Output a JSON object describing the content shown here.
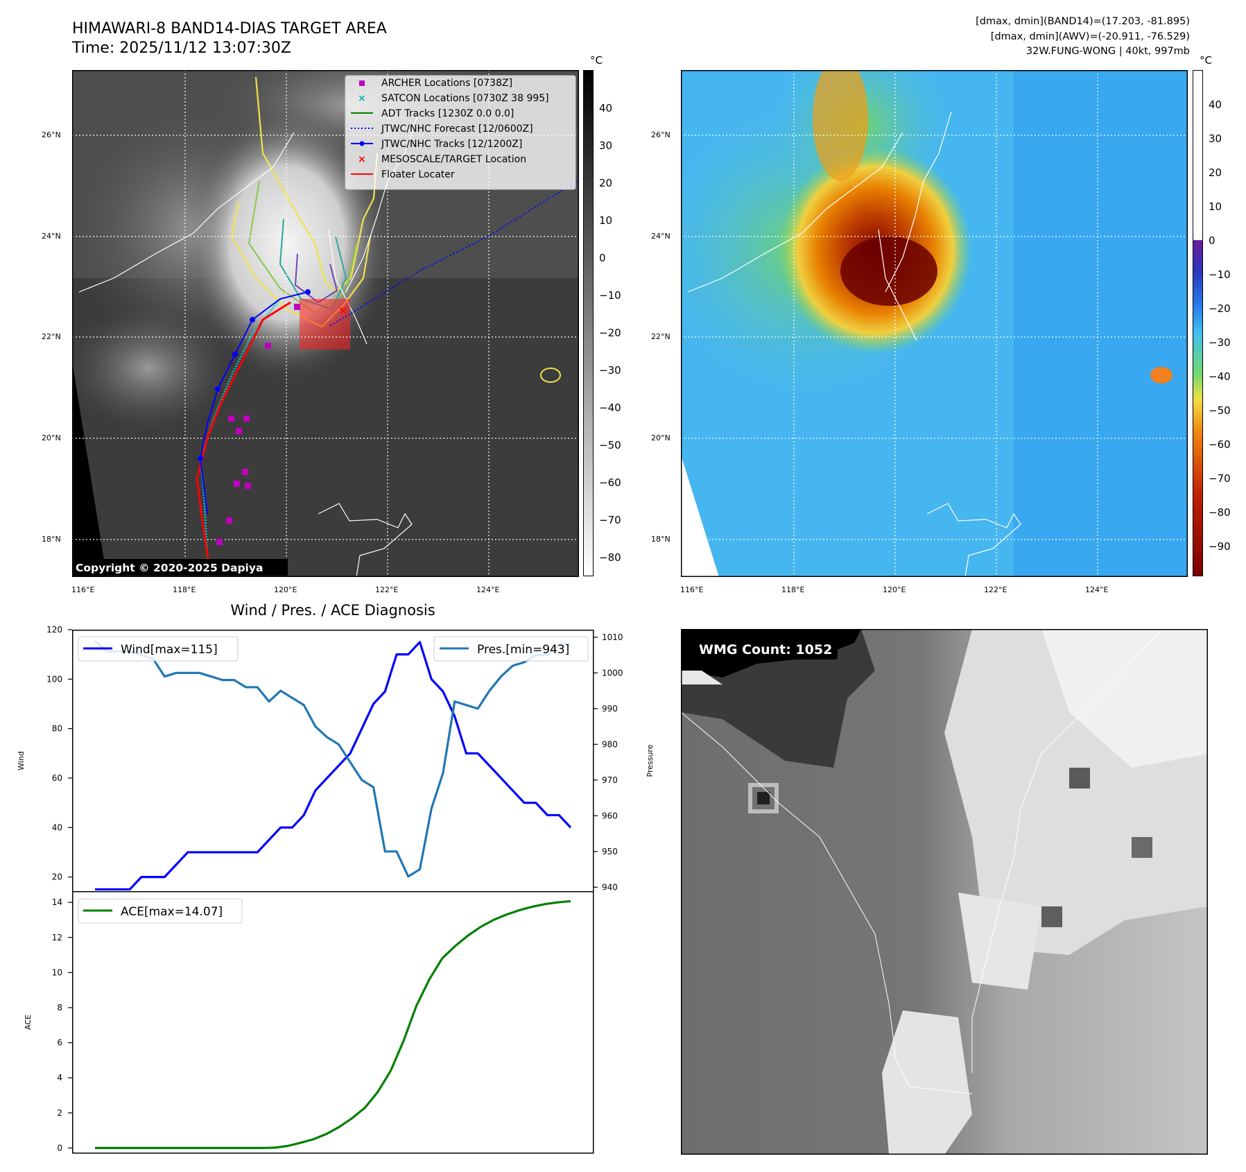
{
  "header": {
    "title_line1": "HIMAWARI-8 BAND14-DIAS TARGET AREA",
    "title_line2": "Time: 2025/11/12 13:07:30Z",
    "info_line1": "[dmax, dmin](BAND14)=(17.203, -81.895)",
    "info_line2": "[dmax, dmin](AWV)=(-20.911, -76.529)",
    "info_line3": "32W.FUNG-WONG | 40kt, 997mb"
  },
  "maps": {
    "lon_ticks": [
      "116°E",
      "118°E",
      "120°E",
      "122°E",
      "124°E"
    ],
    "lat_ticks": [
      "26°N",
      "24°N",
      "22°N",
      "20°N",
      "18°N"
    ],
    "copyright": "Copyright © 2020-2025 Dapiya",
    "colorbar_unit": "°C",
    "colorbar1_ticks": [
      "40",
      "30",
      "20",
      "10",
      "0",
      "−10",
      "−20",
      "−30",
      "−40",
      "−50",
      "−60",
      "−70",
      "−80"
    ],
    "colorbar2_ticks": [
      "40",
      "30",
      "20",
      "10",
      "0",
      "−10",
      "−20",
      "−30",
      "−40",
      "−50",
      "−60",
      "−70",
      "−80",
      "−90"
    ],
    "legend": [
      {
        "label": "ARCHER Locations [0738Z]",
        "color": "#c000c0",
        "marker": "square"
      },
      {
        "label": "SATCON Locations [0730Z 38 995]",
        "color": "#00b8b8",
        "marker": "x"
      },
      {
        "label": "ADT Tracks [1230Z 0.0 0.0]",
        "color": "#008000",
        "marker": "line"
      },
      {
        "label": "JTWC/NHC Forecast [12/0600Z]",
        "color": "#0000ff",
        "marker": "dotted"
      },
      {
        "label": "JTWC/NHC Tracks [12/1200Z]",
        "color": "#0000ff",
        "marker": "line-dot"
      },
      {
        "label": "MESOSCALE/TARGET Location",
        "color": "#ff0000",
        "marker": "x"
      },
      {
        "label": "Floater Locater",
        "color": "#ff0000",
        "marker": "line"
      }
    ],
    "wmg_count": "WMG Count: 1052"
  },
  "chart_data": [
    {
      "type": "line",
      "title": "Wind / Pres. / ACE Diagnosis",
      "ylabel": "Wind",
      "y2label": "Pressure",
      "ylim": [
        14,
        120
      ],
      "y2lim": [
        938.7,
        1012.1
      ],
      "yticks": [
        "120",
        "100",
        "80",
        "60",
        "40",
        "20"
      ],
      "y2ticks": [
        "1010",
        "1000",
        "990",
        "980",
        "970",
        "960",
        "950",
        "940"
      ],
      "series": [
        {
          "name": "Wind[max=115]",
          "axis": "left",
          "color": "#0000ff",
          "values": [
            15,
            15,
            15,
            15,
            20,
            20,
            20,
            25,
            30,
            30,
            30,
            30,
            30,
            30,
            30,
            35,
            40,
            40,
            45,
            55,
            60,
            65,
            70,
            80,
            90,
            95,
            110,
            110,
            115,
            100,
            95,
            85,
            70,
            70,
            65,
            60,
            55,
            50,
            50,
            45,
            45,
            40
          ]
        },
        {
          "name": "Pres.[min=943]",
          "axis": "right",
          "color": "#1f77b4",
          "values": [
            1009,
            1006,
            1006,
            1006,
            1005,
            1004,
            999,
            1000,
            1000,
            1000,
            999,
            998,
            998,
            996,
            996,
            992,
            995,
            993,
            991,
            985,
            982,
            980,
            975,
            970,
            968,
            950,
            950,
            943,
            945,
            962,
            972,
            992,
            991,
            990,
            995,
            999,
            1002,
            1003,
            1005,
            1005,
            1008,
            1008
          ]
        }
      ]
    },
    {
      "type": "line",
      "ylabel": "ACE",
      "ylim": [
        -0.3,
        14.6
      ],
      "yticks": [
        "14",
        "12",
        "10",
        "8",
        "6",
        "4",
        "2",
        "0"
      ],
      "series": [
        {
          "name": "ACE[max=14.07]",
          "color": "#008000",
          "values": [
            0,
            0,
            0,
            0,
            0,
            0,
            0,
            0,
            0,
            0,
            0,
            0,
            0,
            0,
            0.02,
            0.12,
            0.3,
            0.5,
            0.8,
            1.2,
            1.7,
            2.3,
            3.2,
            4.4,
            6.1,
            8.1,
            9.6,
            10.8,
            11.5,
            12.1,
            12.6,
            13.0,
            13.3,
            13.55,
            13.75,
            13.9,
            14.0,
            14.07
          ]
        }
      ]
    }
  ]
}
